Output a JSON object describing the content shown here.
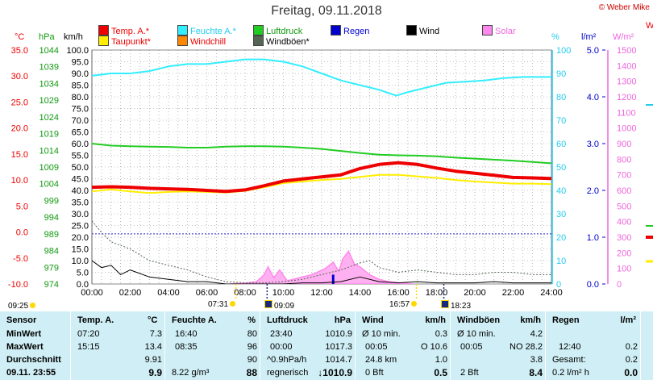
{
  "title": "Freitag, 09.11.2018",
  "copyright": "© Weber Mike",
  "legend": [
    {
      "label": "Temp. A.*",
      "color": "#ee0000",
      "text_color": "#ee0000"
    },
    {
      "label": "Feuchte A.*",
      "color": "#33eeff",
      "text_color": "#22ccee"
    },
    {
      "label": "Luftdruck",
      "color": "#22cc22",
      "text_color": "#119911"
    },
    {
      "label": "Regen",
      "color": "#0000cc",
      "text_color": "#0000cc"
    },
    {
      "label": "Wind",
      "color": "#000000",
      "text_color": "#000000"
    },
    {
      "label": "Solar",
      "color": "#ff88ee",
      "text_color": "#ee66dd"
    },
    {
      "label": "Taupunkt*",
      "color": "#ffee00",
      "text_color": "#ee0000"
    },
    {
      "label": "Windchill",
      "color": "#ff8800",
      "text_color": "#ee0000"
    },
    {
      "label": "Windböen*",
      "color": "#556655",
      "text_color": "#000000"
    }
  ],
  "axis_units": {
    "temp": "°C",
    "pressure": "hPa",
    "wind": "km/h",
    "humidity": "%",
    "rain": "l/m²",
    "solar": "W/m²",
    "cut_label": "W"
  },
  "chart_data": {
    "type": "line",
    "x_ticks": [
      "00:00",
      "02:00",
      "04:00",
      "06:00",
      "08:00",
      "10:00",
      "12:00",
      "14:00",
      "16:00",
      "18:00",
      "20:00",
      "22:00",
      "24:00"
    ],
    "axes": {
      "temp": {
        "unit": "°C",
        "range": [
          -10,
          35
        ],
        "ticks": [
          "35.0",
          "30.0",
          "25.0",
          "20.0",
          "15.0",
          "10.0",
          "5.0",
          "0.0",
          "-5.0",
          "-10.0"
        ]
      },
      "pressure": {
        "unit": "hPa",
        "range": [
          974,
          1044
        ],
        "ticks": [
          "1044",
          "1039",
          "1034",
          "1029",
          "1024",
          "1019",
          "1014",
          "1009",
          "1004",
          "999",
          "994",
          "989",
          "984",
          "979",
          "974"
        ]
      },
      "wind": {
        "unit": "km/h",
        "range": [
          0,
          100
        ],
        "ticks": [
          "100.0",
          "95.0",
          "90.0",
          "85.0",
          "80.0",
          "75.0",
          "70.0",
          "65.0",
          "60.0",
          "55.0",
          "50.0",
          "45.0",
          "40.0",
          "35.0",
          "30.0",
          "25.0",
          "20.0",
          "15.0",
          "10.0",
          "5.0",
          "0.0"
        ]
      },
      "humidity": {
        "unit": "%",
        "range": [
          0,
          100
        ],
        "ticks": [
          "100",
          "90",
          "80",
          "70",
          "60",
          "50",
          "40",
          "30",
          "20",
          "10",
          "0"
        ]
      },
      "rain": {
        "unit": "l/m²",
        "range": [
          0,
          5
        ],
        "ticks": [
          "5.0",
          "4.0",
          "3.0",
          "2.0",
          "1.0",
          "0.0"
        ]
      },
      "solar": {
        "unit": "W/m²",
        "range": [
          0,
          1500
        ],
        "ticks": [
          "1500",
          "1400",
          "1300",
          "1200",
          "1100",
          "1000",
          "900",
          "800",
          "700",
          "600",
          "500",
          "400",
          "300",
          "200",
          "100",
          "0"
        ]
      }
    },
    "series": [
      {
        "name": "Feuchte A.*",
        "axis": "humidity",
        "color": "#33eeff",
        "width": 2,
        "points": [
          [
            0,
            89
          ],
          [
            1,
            90
          ],
          [
            2,
            90
          ],
          [
            3,
            91
          ],
          [
            4,
            93
          ],
          [
            5,
            94
          ],
          [
            6,
            94
          ],
          [
            7,
            95
          ],
          [
            8,
            96
          ],
          [
            9,
            96
          ],
          [
            10,
            95
          ],
          [
            11,
            93
          ],
          [
            12,
            90
          ],
          [
            13,
            87
          ],
          [
            14,
            85
          ],
          [
            15,
            83
          ],
          [
            15.9,
            80.5
          ],
          [
            16.5,
            82
          ],
          [
            17.5,
            84
          ],
          [
            18.5,
            86
          ],
          [
            19.5,
            86.5
          ],
          [
            20.5,
            87
          ],
          [
            21.5,
            88
          ],
          [
            22.5,
            88.5
          ],
          [
            24,
            88.5
          ]
        ]
      },
      {
        "name": "Luftdruck",
        "axis": "pressure",
        "color": "#22cc22",
        "width": 2,
        "points": [
          [
            0,
            1016
          ],
          [
            1,
            1015.4
          ],
          [
            2,
            1015.2
          ],
          [
            3,
            1015.1
          ],
          [
            4,
            1015
          ],
          [
            5,
            1014.8
          ],
          [
            6,
            1014.8
          ],
          [
            7,
            1015.1
          ],
          [
            8,
            1015.2
          ],
          [
            9,
            1015.2
          ],
          [
            10,
            1015.1
          ],
          [
            11,
            1014.8
          ],
          [
            12,
            1014.4
          ],
          [
            13,
            1013.8
          ],
          [
            14,
            1013.2
          ],
          [
            15,
            1012.7
          ],
          [
            16,
            1012.5
          ],
          [
            17,
            1012.4
          ],
          [
            18,
            1012.2
          ],
          [
            19,
            1011.8
          ],
          [
            20,
            1011.5
          ],
          [
            21,
            1011.2
          ],
          [
            22,
            1010.9
          ],
          [
            23,
            1010.5
          ],
          [
            24,
            1010.1
          ]
        ]
      },
      {
        "name": "Taupunkt*",
        "axis": "temp",
        "color": "#ffee00",
        "width": 2,
        "points": [
          [
            0,
            7.8
          ],
          [
            1,
            8.2
          ],
          [
            2,
            7.8
          ],
          [
            3,
            7.5
          ],
          [
            4,
            7.7
          ],
          [
            5,
            7.8
          ],
          [
            6,
            7.7
          ],
          [
            7,
            7.6
          ],
          [
            8,
            7.9
          ],
          [
            9,
            8.6
          ],
          [
            10,
            9.4
          ],
          [
            11,
            9.7
          ],
          [
            12,
            10.0
          ],
          [
            13,
            10.2
          ],
          [
            14,
            10.6
          ],
          [
            15,
            11.0
          ],
          [
            16,
            11.0
          ],
          [
            17,
            10.7
          ],
          [
            18,
            10.4
          ],
          [
            19,
            10.0
          ],
          [
            20,
            9.7
          ],
          [
            21,
            9.5
          ],
          [
            22,
            9.3
          ],
          [
            23,
            9.3
          ],
          [
            24,
            9.2
          ]
        ]
      },
      {
        "name": "Temp. A.*",
        "axis": "temp",
        "color": "#ee0000",
        "width": 4,
        "points": [
          [
            0,
            8.6
          ],
          [
            1,
            8.7
          ],
          [
            2,
            8.6
          ],
          [
            3,
            8.4
          ],
          [
            4,
            8.3
          ],
          [
            5,
            8.2
          ],
          [
            6,
            8.0
          ],
          [
            7,
            7.8
          ],
          [
            8,
            8.1
          ],
          [
            9,
            8.9
          ],
          [
            10,
            9.8
          ],
          [
            11,
            10.2
          ],
          [
            12,
            10.6
          ],
          [
            13,
            11.0
          ],
          [
            14,
            12.2
          ],
          [
            15,
            13.0
          ],
          [
            16,
            13.3
          ],
          [
            17,
            13.0
          ],
          [
            18,
            12.3
          ],
          [
            19,
            11.7
          ],
          [
            20,
            11.3
          ],
          [
            21,
            10.9
          ],
          [
            22,
            10.5
          ],
          [
            23,
            10.4
          ],
          [
            24,
            10.3
          ]
        ]
      },
      {
        "name": "Windböen*",
        "axis": "wind",
        "color": "#556655",
        "width": 1,
        "dash": "2,2",
        "points": [
          [
            0,
            27
          ],
          [
            0.5,
            22
          ],
          [
            1,
            18
          ],
          [
            2,
            15
          ],
          [
            3,
            10
          ],
          [
            4,
            8
          ],
          [
            5,
            6
          ],
          [
            6,
            3
          ],
          [
            7,
            1
          ],
          [
            8,
            0.5
          ],
          [
            9,
            0.5
          ],
          [
            10,
            1
          ],
          [
            11,
            2
          ],
          [
            12,
            4
          ],
          [
            13,
            6
          ],
          [
            14,
            9
          ],
          [
            14.5,
            10
          ],
          [
            15,
            7
          ],
          [
            16,
            5
          ],
          [
            17,
            6
          ],
          [
            18,
            5
          ],
          [
            19,
            4
          ],
          [
            20,
            4
          ],
          [
            21,
            5
          ],
          [
            22,
            5
          ],
          [
            23,
            4
          ],
          [
            24,
            4
          ]
        ]
      },
      {
        "name": "Wind",
        "axis": "wind",
        "color": "#000000",
        "width": 1,
        "points": [
          [
            0,
            10
          ],
          [
            0.5,
            7
          ],
          [
            1,
            8
          ],
          [
            1.5,
            4
          ],
          [
            2,
            6
          ],
          [
            3,
            3
          ],
          [
            4,
            2
          ],
          [
            5,
            1
          ],
          [
            6,
            1
          ],
          [
            7,
            0
          ],
          [
            8,
            0
          ],
          [
            9,
            0
          ],
          [
            10,
            0
          ],
          [
            11,
            0.5
          ],
          [
            12,
            0.5
          ],
          [
            13,
            1
          ],
          [
            14,
            3
          ],
          [
            15,
            1
          ],
          [
            16,
            0.5
          ],
          [
            17,
            1
          ],
          [
            18,
            0.5
          ],
          [
            19,
            0.5
          ],
          [
            20,
            0.5
          ],
          [
            21,
            1
          ],
          [
            22,
            0.5
          ],
          [
            23,
            0.5
          ],
          [
            24,
            0.5
          ]
        ]
      },
      {
        "name": "Solar",
        "axis": "solar",
        "color": "#ff88ee",
        "width": 2,
        "points": [
          [
            7.2,
            0
          ],
          [
            8,
            5
          ],
          [
            8.6,
            15
          ],
          [
            9,
            60
          ],
          [
            9.2,
            110
          ],
          [
            9.5,
            40
          ],
          [
            9.8,
            90
          ],
          [
            10.2,
            20
          ],
          [
            10.8,
            40
          ],
          [
            11.5,
            60
          ],
          [
            12.2,
            100
          ],
          [
            12.6,
            140
          ],
          [
            12.9,
            80
          ],
          [
            13.1,
            160
          ],
          [
            13.4,
            210
          ],
          [
            13.7,
            130
          ],
          [
            14,
            110
          ],
          [
            14.5,
            60
          ],
          [
            15,
            30
          ],
          [
            15.5,
            15
          ],
          [
            16,
            8
          ],
          [
            16.8,
            0
          ]
        ]
      }
    ],
    "rain_bars": [
      {
        "x": 12.6,
        "value": 0.2
      }
    ],
    "pressure_reference": 989,
    "sun_marks": [
      {
        "label": "09:25",
        "row": 1
      },
      {
        "label": "07:31",
        "row": 0
      },
      {
        "label": "09:09",
        "row": 0
      },
      {
        "label": "16:57",
        "row": 0
      },
      {
        "label": "18:23",
        "row": 0
      }
    ]
  },
  "stats": {
    "headers": {
      "sensor": "Sensor",
      "temp": "Temp. A.",
      "temp_unit": "°C",
      "hum": "Feuchte A.",
      "hum_unit": "%",
      "press": "Luftdruck",
      "press_unit": "hPa",
      "wind": "Wind",
      "wind_unit": "km/h",
      "gust": "Windböen",
      "gust_unit": "km/h",
      "rain": "Regen",
      "rain_unit": "l/m²"
    },
    "labels": {
      "min": "MinWert",
      "max": "MaxWert",
      "avg": "Durchschnitt",
      "now": "09.11. 23:55"
    },
    "temp": {
      "min_time": "07:20",
      "min": "7.3",
      "max_time": "15:15",
      "max": "13.4",
      "avg": "9.91",
      "now": "9.9"
    },
    "hum": {
      "min_time": "16:40",
      "min": "80",
      "max_time": "08:35",
      "max": "96",
      "avg": "90",
      "abs": "8.22 g/m³",
      "now": "88"
    },
    "press": {
      "min_time": "23:40",
      "min": "1010.9",
      "max_time": "00:00",
      "max": "1017.3",
      "trend_label": "^0.9hPa/h",
      "avg": "1014.7",
      "tendency": "regnerisch",
      "now_arrow": "↓",
      "now": "1010.9"
    },
    "wind": {
      "r1_label": "Ø 10 min.",
      "r1": "0.3",
      "r2_time": "00:05",
      "r2": "O 10.6",
      "r3_label": "24.8 km",
      "r3": "1.0",
      "bft": "0 Bft",
      "now": "0.5"
    },
    "gust": {
      "r1_label": "Ø 10 min.",
      "r1": "4.2",
      "r2_time": "00:05",
      "r2": "NO 28.2",
      "r3": "3.8",
      "bft": "2 Bft",
      "now": "8.4"
    },
    "rain": {
      "r2_time": "12:40",
      "r2": "0.2",
      "r3_label": "Gesamt:",
      "r3": "0.2",
      "rate": "0.2 l/m² h",
      "now": "0.0"
    }
  }
}
